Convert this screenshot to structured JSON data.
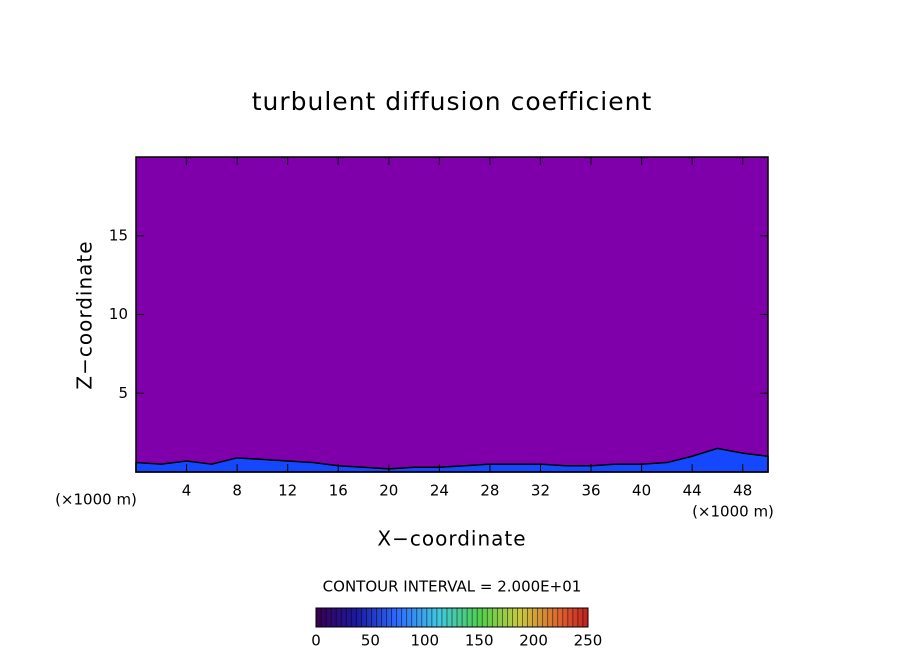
{
  "chart_data": {
    "type": "contour",
    "title": "turbulent diffusion coefficient",
    "x_label": "X−coordinate",
    "y_label": "Z−coordinate",
    "x_unit_label": "(×1000 m)",
    "y_unit_label": "(×1000 m)",
    "xlim": [
      0,
      50
    ],
    "ylim": [
      0,
      20
    ],
    "xticks": [
      4,
      8,
      12,
      16,
      20,
      24,
      28,
      32,
      36,
      40,
      44,
      48
    ],
    "yticks": [
      5,
      10,
      15
    ],
    "background_color": "#7f00aa",
    "color": "#1448ff",
    "x": [
      0,
      2,
      4,
      6,
      8,
      10,
      12,
      14,
      16,
      18,
      20,
      22,
      24,
      26,
      28,
      30,
      32,
      34,
      36,
      38,
      40,
      42,
      44,
      46,
      48,
      50
    ],
    "values": [
      0.6,
      0.5,
      0.7,
      0.5,
      0.9,
      0.8,
      0.7,
      0.6,
      0.4,
      0.3,
      0.2,
      0.3,
      0.3,
      0.4,
      0.5,
      0.5,
      0.5,
      0.4,
      0.4,
      0.5,
      0.5,
      0.6,
      1.0,
      1.5,
      1.2,
      1.0
    ],
    "contour_interval": "CONTOUR INTERVAL = 2.000E+01",
    "colorbar": {
      "clim": [
        0,
        250
      ],
      "ticks": [
        0,
        50,
        100,
        150,
        200,
        250
      ]
    }
  }
}
